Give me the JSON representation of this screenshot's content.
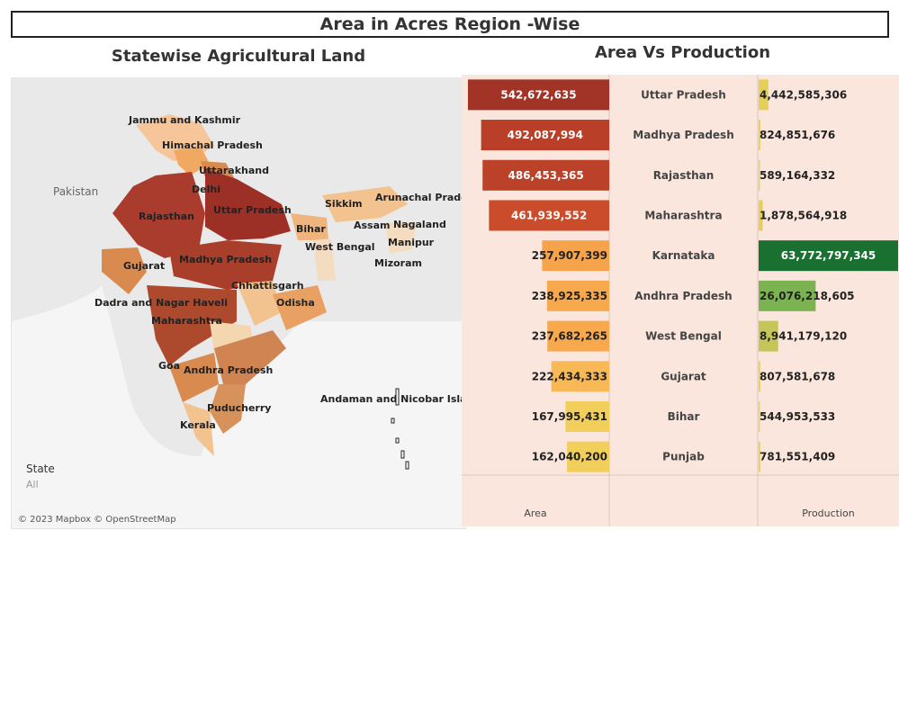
{
  "page": {
    "title": "Area in Acres Region -Wise",
    "map_title": "Statewise  Agricultural Land",
    "chart_title": "Area Vs Production"
  },
  "map": {
    "state_filter_label": "State",
    "state_filter_value": "All",
    "credit": "© 2023 Mapbox © OpenStreetMap",
    "country_labels": [
      "Pakistan"
    ],
    "state_labels": [
      "Jammu and Kashmir",
      "Himachal Pradesh",
      "Uttarakhand",
      "Delhi",
      "Rajasthan",
      "Uttar Pradesh",
      "Sikkim",
      "Arunachal Pradesh",
      "Assam",
      "Nagaland",
      "Bihar",
      "West Bengal",
      "Manipur",
      "Mizoram",
      "Gujarat",
      "Madhya Pradesh",
      "Chhattisgarh",
      "Odisha",
      "Dadra and Nagar Haveli",
      "Maharashtra",
      "Goa",
      "Andhra Pradesh",
      "Andaman and Nicobar Island",
      "Puducherry",
      "Kerala"
    ]
  },
  "chart_data": {
    "type": "bar",
    "categories": [
      "Uttar Pradesh",
      "Madhya Pradesh",
      "Rajasthan",
      "Maharashtra",
      "Karnataka",
      "Andhra Pradesh",
      "West Bengal",
      "Gujarat",
      "Bihar",
      "Punjab"
    ],
    "series": [
      {
        "name": "Area",
        "values": [
          542672635,
          492087994,
          486453365,
          461939552,
          257907399,
          238925335,
          237682265,
          222434333,
          167995431,
          162040200
        ]
      },
      {
        "name": "Production",
        "values": [
          4442585306,
          824851676,
          589164332,
          1878564918,
          63772797345,
          26076218605,
          8941179120,
          807581678,
          544953533,
          781551409
        ]
      }
    ],
    "labels": {
      "area": [
        "542,672,635",
        "492,087,994",
        "486,453,365",
        "461,939,552",
        "257,907,399",
        "238,925,335",
        "237,682,265",
        "222,434,333",
        "167,995,431",
        "162,040,200"
      ],
      "production": [
        "4,442,585,306",
        "824,851,676",
        "589,164,332",
        "1,878,564,918",
        "63,772,797,345",
        "26,076,218,605",
        "8,941,179,120",
        "807,581,678",
        "544,953,533",
        "781,551,409"
      ]
    },
    "area_colors": [
      "#a23327",
      "#b93f28",
      "#bc4129",
      "#ca4c2b",
      "#f6a44c",
      "#f8a84d",
      "#f8a94e",
      "#f7b855",
      "#f2ce5b",
      "#f2ce5b"
    ],
    "production_colors": [
      "#e5cf59",
      "#e9d160",
      "#e9d160",
      "#e6cf59",
      "#1a7031",
      "#7cb351",
      "#c4c65a",
      "#e9d160",
      "#e9d160",
      "#e9d160"
    ],
    "xlabel_area": "Area",
    "xlabel_production": "Production",
    "background": "#fbe6dd"
  }
}
